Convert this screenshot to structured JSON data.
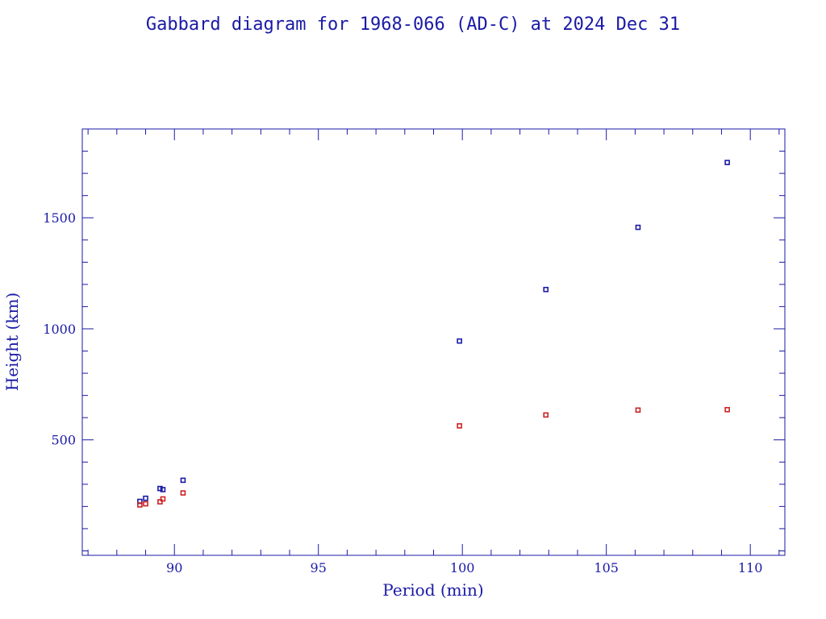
{
  "chart_data": {
    "type": "scatter",
    "title": "Gabbard diagram for 1968-066 (AD-C) at 2024 Dec 31",
    "xlabel": "Period (min)",
    "ylabel": "Height (km)",
    "xlim": [
      86.8,
      111.2
    ],
    "ylim": [
      -20,
      1900
    ],
    "x_ticks": [
      90,
      95,
      100,
      105,
      110
    ],
    "x_minor_step": 1,
    "y_ticks": [
      500,
      1000,
      1500
    ],
    "y_minor_step": 100,
    "grid": false,
    "series": [
      {
        "color": "#1a1aa6",
        "points": [
          [
            88.8,
            223
          ],
          [
            89.0,
            237
          ],
          [
            89.5,
            281
          ],
          [
            89.6,
            276
          ],
          [
            90.3,
            318
          ],
          [
            99.9,
            945
          ],
          [
            102.9,
            1177
          ],
          [
            106.1,
            1457
          ],
          [
            109.2,
            1749
          ]
        ]
      },
      {
        "color": "#cc2222",
        "points": [
          [
            88.8,
            207
          ],
          [
            89.0,
            212
          ],
          [
            89.5,
            221
          ],
          [
            89.6,
            234
          ],
          [
            90.3,
            261
          ],
          [
            99.9,
            563
          ],
          [
            102.9,
            612
          ],
          [
            106.1,
            634
          ],
          [
            109.2,
            636
          ]
        ]
      }
    ]
  }
}
